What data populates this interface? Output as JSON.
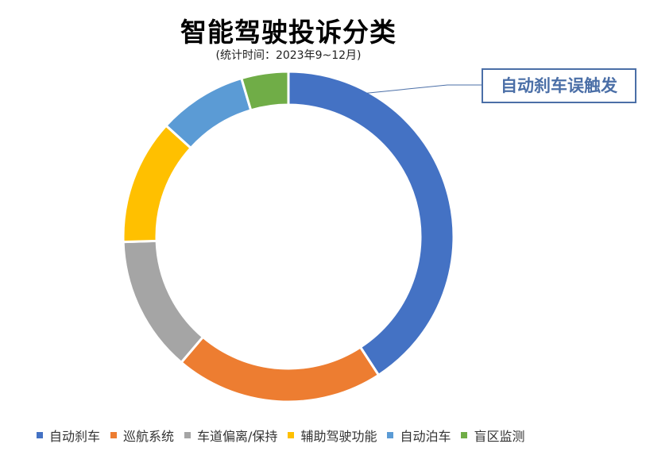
{
  "chart_data": {
    "type": "pie",
    "title": "智能驾驶投诉分类",
    "subtitle": "(统计时间：2023年9~12月)",
    "categories": [
      "自动刹车",
      "巡航系统",
      "车道偏离/保持",
      "辅助驾驶功能",
      "自动泊车",
      "盲区监测"
    ],
    "values": [
      40,
      20,
      13,
      12,
      8.5,
      4.5
    ],
    "colors": [
      "#4472c4",
      "#ed7d31",
      "#a5a5a5",
      "#ffc000",
      "#5b9bd5",
      "#70ad47"
    ],
    "donut": true,
    "legend_position": "bottom",
    "annotation": {
      "text": "自动刹车误触发",
      "target_category": "自动刹车",
      "color": "#4b6fa7"
    }
  }
}
